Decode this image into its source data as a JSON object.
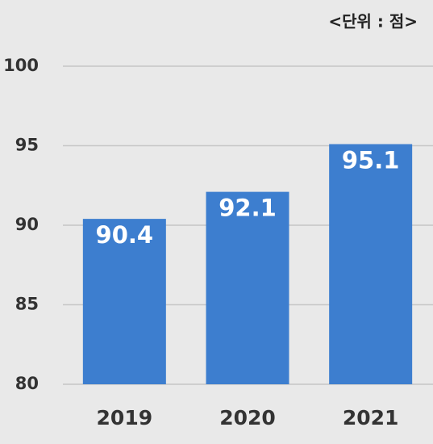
{
  "chart_data": {
    "type": "bar",
    "subtitle": "<단위 : 점>",
    "categories": [
      "2019",
      "2020",
      "2021"
    ],
    "values": [
      90.4,
      92.1,
      95.1
    ],
    "color": "#3d7ecf",
    "ylim": [
      80,
      100
    ],
    "yticks": [
      80,
      85,
      90,
      95,
      100
    ],
    "grid": true
  }
}
